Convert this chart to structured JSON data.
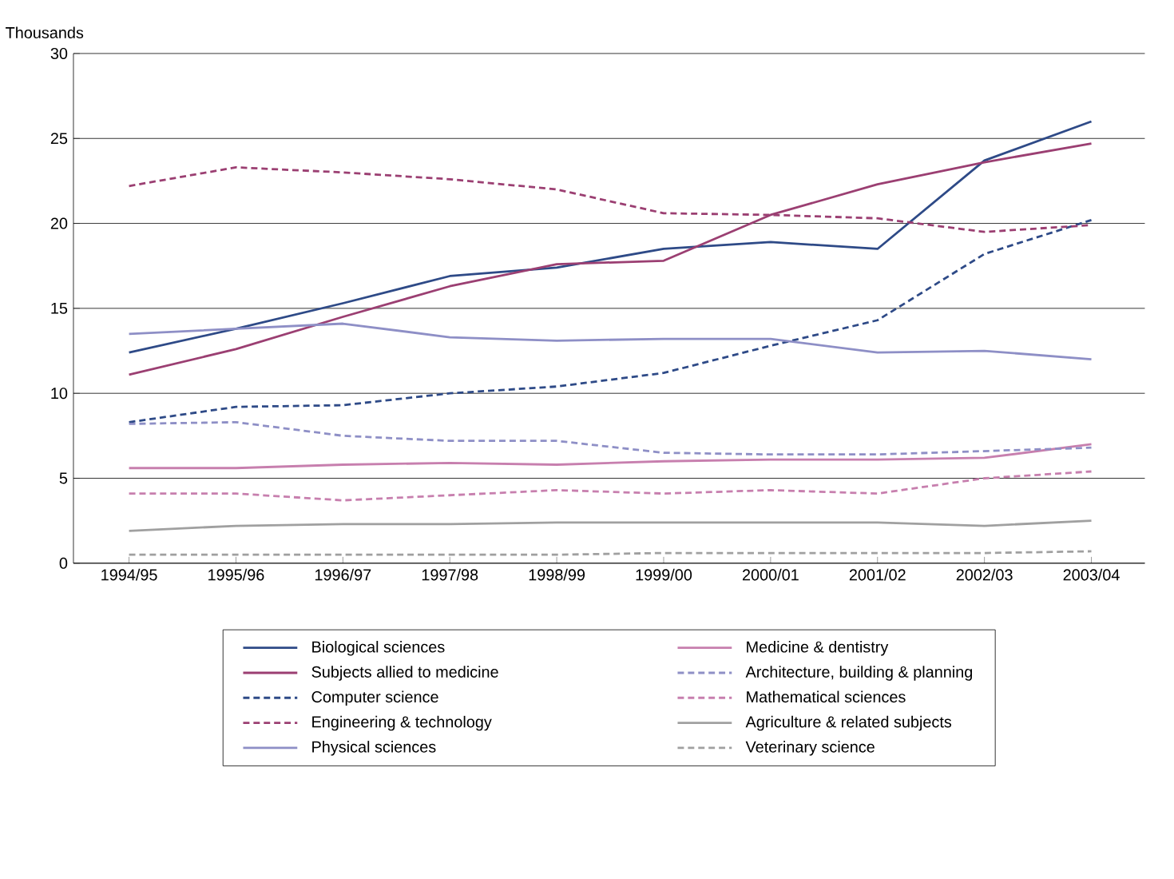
{
  "chart_data": {
    "type": "line",
    "ylabel": "Thousands",
    "categories": [
      "1994/95",
      "1995/96",
      "1996/97",
      "1997/98",
      "1998/99",
      "1999/00",
      "2000/01",
      "2001/02",
      "2002/03",
      "2003/04"
    ],
    "ylim": [
      0,
      30
    ],
    "yticks": [
      0,
      5,
      10,
      15,
      20,
      25,
      30
    ],
    "grid": "y",
    "legend": "bottom",
    "marker": "none",
    "series": [
      {
        "name": "Biological sciences",
        "color": "#2e4a87",
        "line_style": "solid",
        "values": [
          12.4,
          13.8,
          15.3,
          16.9,
          17.4,
          18.5,
          18.9,
          18.5,
          23.7,
          26.0
        ]
      },
      {
        "name": "Subjects allied to medicine",
        "color": "#9b3f72",
        "line_style": "solid",
        "values": [
          11.1,
          12.6,
          14.5,
          16.3,
          17.6,
          17.8,
          20.5,
          22.3,
          23.6,
          24.7
        ]
      },
      {
        "name": "Computer science",
        "color": "#2e4a87",
        "line_style": "dashed",
        "values": [
          8.3,
          9.2,
          9.3,
          10.0,
          10.4,
          11.2,
          12.8,
          14.3,
          18.2,
          20.2
        ]
      },
      {
        "name": "Engineering & technology",
        "color": "#9b3f72",
        "line_style": "dashed",
        "values": [
          22.2,
          23.3,
          23.0,
          22.6,
          22.0,
          20.6,
          20.5,
          20.3,
          19.5,
          19.9
        ]
      },
      {
        "name": "Physical sciences",
        "color": "#8e8fc6",
        "line_style": "solid",
        "values": [
          13.5,
          13.8,
          14.1,
          13.3,
          13.1,
          13.2,
          13.2,
          12.4,
          12.5,
          12.0
        ]
      },
      {
        "name": "Medicine & dentistry",
        "color": "#c77fae",
        "line_style": "solid",
        "values": [
          5.6,
          5.6,
          5.8,
          5.9,
          5.8,
          6.0,
          6.1,
          6.1,
          6.2,
          7.0
        ]
      },
      {
        "name": "Architecture, building & planning",
        "color": "#8e8fc6",
        "line_style": "dashed",
        "values": [
          8.2,
          8.3,
          7.5,
          7.2,
          7.2,
          6.5,
          6.4,
          6.4,
          6.6,
          6.8
        ]
      },
      {
        "name": "Mathematical sciences",
        "color": "#c77fae",
        "line_style": "dashed",
        "values": [
          4.1,
          4.1,
          3.7,
          4.0,
          4.3,
          4.1,
          4.3,
          4.1,
          5.0,
          5.4
        ]
      },
      {
        "name": "Agriculture & related subjects",
        "color": "#a0a0a0",
        "line_style": "solid",
        "values": [
          1.9,
          2.2,
          2.3,
          2.3,
          2.4,
          2.4,
          2.4,
          2.4,
          2.2,
          2.5
        ]
      },
      {
        "name": "Veterinary science",
        "color": "#a0a0a0",
        "line_style": "dashed",
        "values": [
          0.5,
          0.5,
          0.5,
          0.5,
          0.5,
          0.6,
          0.6,
          0.6,
          0.6,
          0.7
        ]
      }
    ]
  }
}
